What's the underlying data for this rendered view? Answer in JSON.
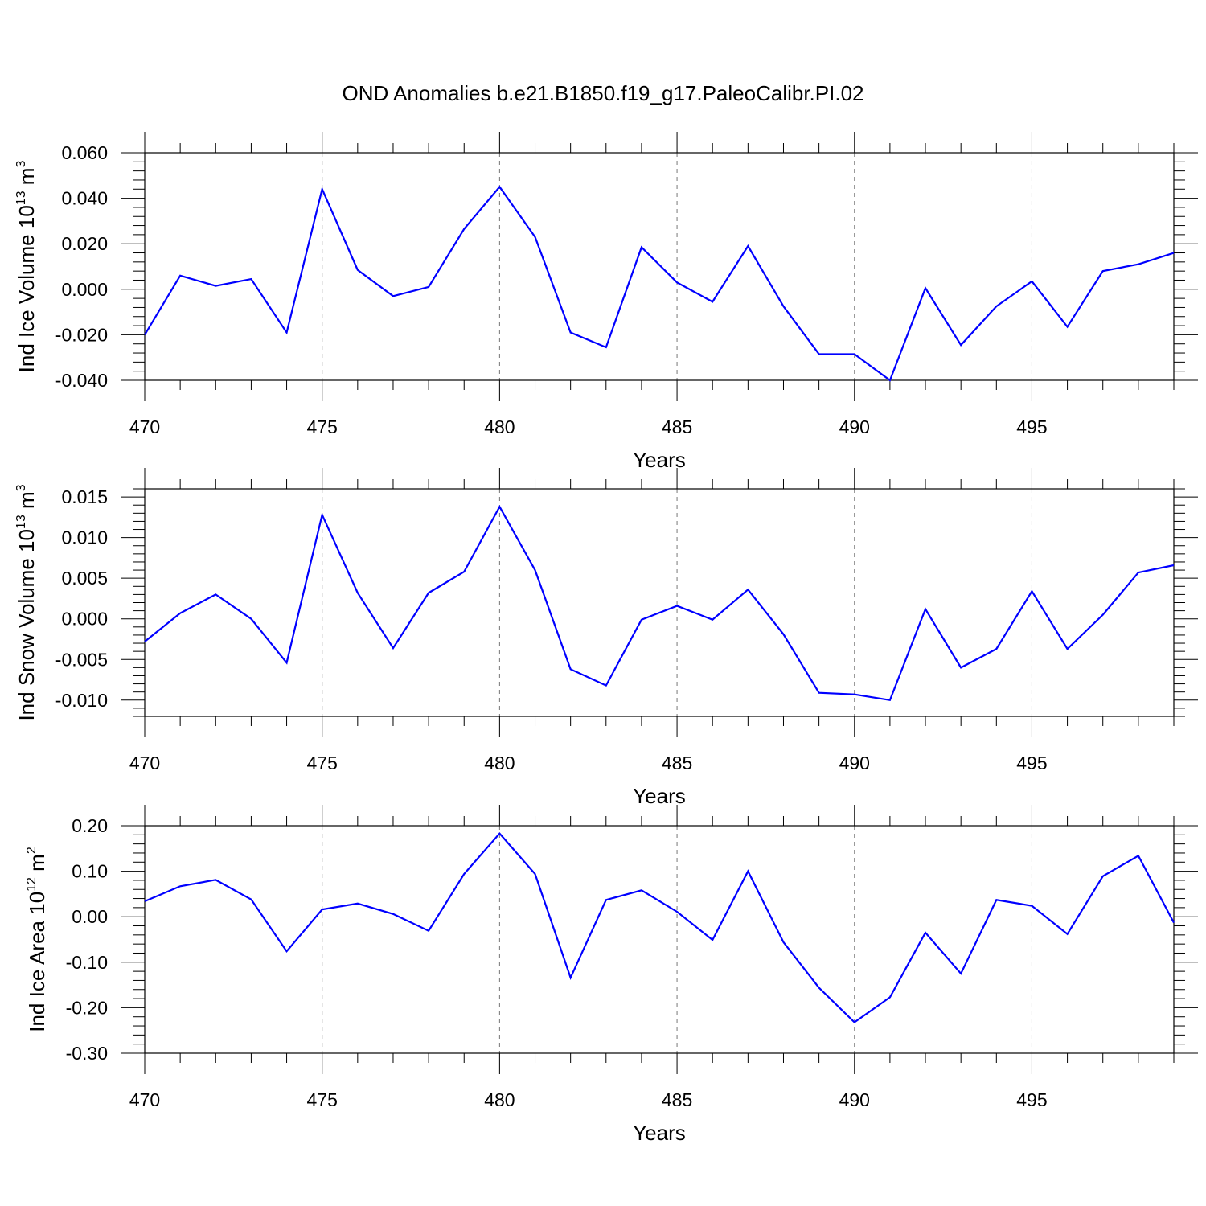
{
  "chart_data": [
    {
      "type": "line",
      "title": "OND Anomalies b.e21.B1850.f19_g17.PaleoCalibr.PI.02",
      "ylabel": "Ind Ice Volume 10",
      "ylabel_exp": "13",
      "ylabel_unit": " m",
      "ylabel_unit_exp": "3",
      "xlabel": "Years",
      "xlim": [
        470,
        499
      ],
      "ylim": [
        -0.04,
        0.06
      ],
      "yticks": [
        -0.04,
        -0.02,
        0.0,
        0.02,
        0.04,
        0.06
      ],
      "ytick_labels": [
        "-0.040",
        "-0.020",
        "0.000",
        "0.020",
        "0.040",
        "0.060"
      ],
      "ydecimals": 3,
      "xticks": [
        470,
        475,
        480,
        485,
        490,
        495
      ],
      "x": [
        470,
        471,
        472,
        473,
        474,
        475,
        476,
        477,
        478,
        479,
        480,
        481,
        482,
        483,
        484,
        485,
        486,
        487,
        488,
        489,
        490,
        491,
        492,
        493,
        494,
        495,
        496,
        497,
        498,
        499
      ],
      "series": [
        {
          "name": "Ind Ice Volume",
          "color": "#0000ff",
          "values": [
            -0.02,
            0.006,
            0.0015,
            0.0045,
            -0.019,
            0.044,
            0.0085,
            -0.003,
            0.001,
            0.0265,
            0.045,
            0.023,
            -0.019,
            -0.0255,
            0.0185,
            0.003,
            -0.0055,
            0.019,
            -0.0075,
            -0.0285,
            -0.0285,
            -0.04,
            0.0005,
            -0.0245,
            -0.0075,
            0.0035,
            -0.0165,
            0.008,
            0.011,
            0.016
          ]
        }
      ]
    },
    {
      "type": "line",
      "ylabel": "Ind Snow Volume 10",
      "ylabel_exp": "13",
      "ylabel_unit": " m",
      "ylabel_unit_exp": "3",
      "xlabel": "Years",
      "xlim": [
        470,
        499
      ],
      "ylim": [
        -0.012,
        0.016
      ],
      "yticks": [
        -0.01,
        -0.005,
        0.0,
        0.005,
        0.01,
        0.015
      ],
      "ytick_labels": [
        "-0.010",
        "-0.005",
        "0.000",
        "0.005",
        "0.010",
        "0.015"
      ],
      "ydecimals": 3,
      "xticks": [
        470,
        475,
        480,
        485,
        490,
        495
      ],
      "x": [
        470,
        471,
        472,
        473,
        474,
        475,
        476,
        477,
        478,
        479,
        480,
        481,
        482,
        483,
        484,
        485,
        486,
        487,
        488,
        489,
        490,
        491,
        492,
        493,
        494,
        495,
        496,
        497,
        498,
        499
      ],
      "series": [
        {
          "name": "Ind Snow Volume",
          "color": "#0000ff",
          "values": [
            -0.0028,
            0.0007,
            0.003,
            0.0,
            -0.0054,
            0.0128,
            0.0032,
            -0.0036,
            0.0032,
            0.0058,
            0.0138,
            0.006,
            -0.0062,
            -0.0082,
            -0.0001,
            0.0016,
            -0.0001,
            0.0036,
            -0.0019,
            -0.0091,
            -0.0093,
            -0.01,
            0.0012,
            -0.006,
            -0.0037,
            0.0034,
            -0.0037,
            0.0005,
            0.0057,
            0.0066
          ]
        }
      ]
    },
    {
      "type": "line",
      "ylabel": "Ind Ice Area 10",
      "ylabel_exp": "12",
      "ylabel_unit": " m",
      "ylabel_unit_exp": "2",
      "xlabel": "Years",
      "xlim": [
        470,
        499
      ],
      "ylim": [
        -0.3,
        0.2
      ],
      "yticks": [
        -0.3,
        -0.2,
        -0.1,
        0.0,
        0.1,
        0.2
      ],
      "ytick_labels": [
        "-0.30",
        "-0.20",
        "-0.10",
        "0.00",
        "0.10",
        "0.20"
      ],
      "ydecimals": 2,
      "xticks": [
        470,
        475,
        480,
        485,
        490,
        495
      ],
      "x": [
        470,
        471,
        472,
        473,
        474,
        475,
        476,
        477,
        478,
        479,
        480,
        481,
        482,
        483,
        484,
        485,
        486,
        487,
        488,
        489,
        490,
        491,
        492,
        493,
        494,
        495,
        496,
        497,
        498,
        499
      ],
      "series": [
        {
          "name": "Ind Ice Area",
          "color": "#0000ff",
          "values": [
            0.034,
            0.067,
            0.081,
            0.038,
            -0.076,
            0.016,
            0.029,
            0.006,
            -0.031,
            0.094,
            0.183,
            0.094,
            -0.134,
            0.037,
            0.058,
            0.011,
            -0.051,
            0.1,
            -0.056,
            -0.156,
            -0.232,
            -0.177,
            -0.035,
            -0.125,
            0.037,
            0.024,
            -0.038,
            0.089,
            0.134,
            -0.013
          ]
        }
      ]
    }
  ]
}
